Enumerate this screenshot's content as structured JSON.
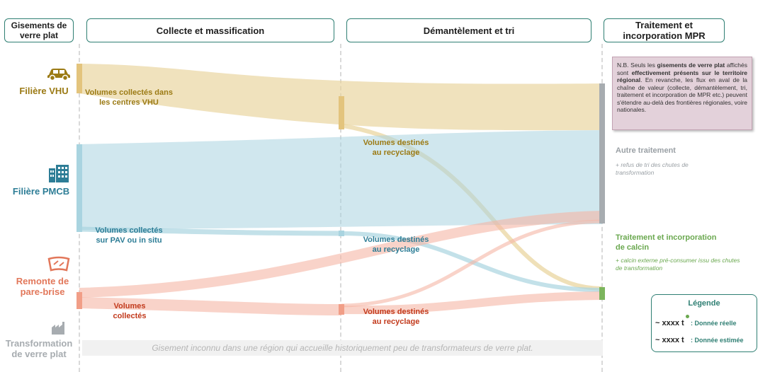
{
  "headers": {
    "gisements": "Gisements de verre plat",
    "collecte": "Collecte et massification",
    "demantelement": "Démantèlement et tri",
    "traitement": "Traitement et incorporation MPR"
  },
  "filieres": {
    "vhu": "Filière VHU",
    "pmcb": "Filière PMCB",
    "parebrise": "Remonte de pare-brise",
    "transformation": "Transformation de verre plat"
  },
  "labels": {
    "vhu_collect": "Volumes collectés dans les centres VHU",
    "vhu_recyc": "Volumes destinés au recyclage",
    "pmcb_collect": "Volumes collectés sur PAV ou in situ",
    "pmcb_recyc": "Volumes destinés au recyclage",
    "pb_collect": "Volumes collectés",
    "pb_recyc": "Volumes destinés au recyclage"
  },
  "note": {
    "p1": "N.B. Seuls les ",
    "b1": "gisements de verre plat",
    "p2": " affichés sont ",
    "b2": "effectivement présents sur le territoire régional",
    "p3": ". En revanche, les flux en aval de la chaîne de valeur (collecte, démantèlement, tri, traitement et incorporation de MPR etc.) peuvent s'étendre au-delà des frontières régionales, voire nationales."
  },
  "outputs": {
    "autre_title": "Autre traitement",
    "autre_sub": "+ refus de tri des chutes de transformation",
    "calcin_title": "Traitement et incorporation de calcin",
    "calcin_sub": "+ calcin externe pré-consumer issu des chutes de transformation"
  },
  "legend": {
    "title": "Légende",
    "value": "~ xxxx t",
    "reelle": ": Donnée réelle",
    "estimee": ": Donnée estimée"
  },
  "banner": "Gisement inconnu dans une région qui accueille historiquement peu de transformateurs de verre plat.",
  "colors": {
    "vhu": "#e8d39a",
    "pmcb": "#a9d4e0",
    "parebrise": "#f5b5a5",
    "gray_node": "#a7acb0",
    "green_node": "#7cb55d",
    "vhu_text": "#9b7a14",
    "pmcb_text": "#2d7d96",
    "pb_text": "#c23a1c",
    "gray_text": "#9aa0a5",
    "green_text": "#6aa84f",
    "header_border": "#2f7f73"
  }
}
